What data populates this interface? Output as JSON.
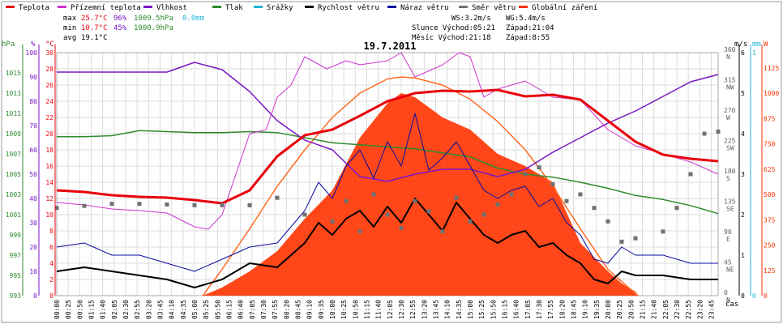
{
  "chart_data": {
    "type": "line",
    "title": "19.7.2011",
    "legend": [
      {
        "name": "Teplota",
        "color": "#e8000b"
      },
      {
        "name": "Přízemní teplota",
        "color": "#cc33cc"
      },
      {
        "name": "Vlhkost",
        "color": "#7b16c4"
      },
      {
        "name": "Tlak",
        "color": "#2e8b2e"
      },
      {
        "name": "Srážky",
        "color": "#1fb6d6"
      },
      {
        "name": "Rychlost větru",
        "color": "#000000"
      },
      {
        "name": "Náraz větru",
        "color": "#0a0aa0"
      },
      {
        "name": "Směr větru",
        "color": "#707070"
      },
      {
        "name": "Globální záření",
        "color": "#ff3300"
      }
    ],
    "stats": {
      "max": {
        "label": "max",
        "temp": "25.7°C",
        "hum": "96%",
        "press": "1009.5hPa",
        "rain": "0.0mm"
      },
      "min": {
        "label": "min",
        "temp": "10.7°C",
        "hum": "45%",
        "press": "1000.9hPa"
      },
      "avg": {
        "label": "avg",
        "temp": "19.1°C"
      }
    },
    "info": {
      "ws": "WS:3.2m/s",
      "wg": "WG:5.4m/s",
      "sun": "Slunce Východ:05:21",
      "sun_set": "Západ:21:04",
      "moon": "Měsíc Východ:21:18",
      "moon_set": "Západ:8:55"
    },
    "axes": {
      "hpa_unit": "hPa",
      "hum_unit": "%",
      "temp_unit": "°C",
      "wind_unit": "m/s",
      "rain_unit": "mm",
      "rad_unit": "W",
      "time_unit": "čas",
      "hpa_ticks": [
        "993",
        "995",
        "997",
        "999",
        "1001",
        "1003",
        "1005",
        "1007",
        "1009",
        "1011",
        "1013",
        "1015"
      ],
      "hum_ticks": [
        "0",
        "10",
        "20",
        "30",
        "40",
        "50",
        "60",
        "70",
        "80",
        "90",
        "100"
      ],
      "temp_ticks": [
        "0",
        "2",
        "4",
        "6",
        "8",
        "10",
        "12",
        "14",
        "16",
        "18",
        "20",
        "22",
        "24",
        "26",
        "28",
        "30"
      ],
      "dir_ticks": [
        {
          "deg": "0",
          "lab": "N"
        },
        {
          "deg": "45",
          "lab": "NE"
        },
        {
          "deg": "90",
          "lab": "E"
        },
        {
          "deg": "135",
          "lab": "SE"
        },
        {
          "deg": "180",
          "lab": "S"
        },
        {
          "deg": "225",
          "lab": "SW"
        },
        {
          "deg": "270",
          "lab": "W"
        },
        {
          "deg": "315",
          "lab": "NW"
        },
        {
          "deg": "360",
          "lab": "N"
        }
      ],
      "wind_ticks": [
        "0",
        "1",
        "2",
        "3",
        "4",
        "5",
        "6"
      ],
      "rain_ticks": [
        "0",
        "1"
      ],
      "rad_ticks": [
        "0",
        "125",
        "250",
        "375",
        "500",
        "625",
        "750",
        "875",
        "1000",
        "1125"
      ],
      "time_ticks": [
        "00:00",
        "00:25",
        "00:50",
        "01:15",
        "01:40",
        "02:05",
        "02:30",
        "02:55",
        "03:20",
        "03:45",
        "04:10",
        "04:35",
        "05:00",
        "05:25",
        "05:50",
        "06:15",
        "06:40",
        "07:05",
        "07:30",
        "07:55",
        "08:20",
        "08:45",
        "09:10",
        "09:35",
        "10:00",
        "10:25",
        "10:50",
        "11:15",
        "11:40",
        "12:05",
        "12:30",
        "12:55",
        "13:20",
        "13:45",
        "14:10",
        "14:35",
        "15:00",
        "15:25",
        "15:50",
        "16:15",
        "16:40",
        "17:05",
        "17:30",
        "17:55",
        "18:20",
        "18:45",
        "19:10",
        "19:35",
        "20:00",
        "20:25",
        "20:50",
        "21:15",
        "21:40",
        "22:05",
        "22:30",
        "22:55",
        "23:20",
        "23:45"
      ],
      "temp_range": [
        0,
        30
      ],
      "hum_range": [
        0,
        100
      ],
      "press_range": [
        993,
        1017
      ],
      "wind_range": [
        0,
        6
      ],
      "rad_range": [
        0,
        1200
      ],
      "dir_range": [
        0,
        360
      ]
    },
    "series": [
      {
        "name": "Teplota",
        "x": [
          0,
          1,
          2,
          3,
          4,
          5,
          6,
          7,
          8,
          9,
          10,
          11,
          12,
          13,
          14,
          15,
          16,
          17,
          18,
          19,
          20,
          21,
          22,
          23,
          24
        ],
        "y": [
          13,
          12.8,
          12.4,
          12.2,
          12.1,
          11.8,
          11.4,
          13,
          17.2,
          19.8,
          20.5,
          22.2,
          24,
          25,
          25.3,
          25.2,
          25.4,
          24.6,
          24.8,
          24.2,
          21.6,
          19,
          17.4,
          16.9,
          16.6
        ]
      },
      {
        "name": "Přízemní teplota",
        "x": [
          0,
          1,
          2,
          3,
          4,
          5,
          5.5,
          6,
          7,
          7.6,
          8,
          8.5,
          9,
          9.8,
          10.5,
          11,
          12,
          12.5,
          13,
          14,
          14.6,
          15,
          15.5,
          16,
          17,
          18,
          19,
          20,
          20.5,
          21,
          22,
          23,
          24
        ],
        "y": [
          11.5,
          11.2,
          10.7,
          10.5,
          10.2,
          8.5,
          8.2,
          10,
          20,
          20.5,
          24.5,
          26,
          29.5,
          28,
          29,
          28.5,
          29,
          30,
          27,
          28.5,
          30,
          29.5,
          24.5,
          25.5,
          26.5,
          24.5,
          24.2,
          20.5,
          19.5,
          18.5,
          17.5,
          16.5,
          15
        ]
      },
      {
        "name": "Vlhkost",
        "x": [
          0,
          1,
          2,
          3,
          4,
          5,
          6,
          7,
          8,
          9,
          10,
          11,
          12,
          13,
          14,
          15,
          16,
          17,
          18,
          19,
          20,
          21,
          22,
          23,
          24
        ],
        "y": [
          92,
          92,
          92,
          92,
          92,
          96,
          93,
          84,
          72,
          64,
          60,
          49,
          47,
          50,
          52,
          52,
          49,
          52,
          59,
          65,
          71,
          76,
          82,
          88,
          91
        ]
      },
      {
        "name": "Tlak",
        "x": [
          0,
          1,
          2,
          3,
          4,
          5,
          6,
          7,
          8,
          9,
          10,
          11,
          12,
          13,
          14,
          15,
          16,
          17,
          18,
          19,
          20,
          21,
          22,
          23,
          24
        ],
        "y": [
          1008.7,
          1008.7,
          1008.8,
          1009.3,
          1009.2,
          1009.1,
          1009.1,
          1009.2,
          1009.1,
          1008.6,
          1008.1,
          1007.9,
          1007.7,
          1007.5,
          1007.1,
          1006.7,
          1005.6,
          1005,
          1004.7,
          1004.2,
          1003.6,
          1002.9,
          1002.5,
          1001.9,
          1001.1
        ]
      },
      {
        "name": "Rychlost větru",
        "x": [
          0,
          1,
          2,
          3,
          4,
          5,
          6,
          7,
          8,
          9,
          9.5,
          10,
          10.5,
          11,
          11.5,
          12,
          12.5,
          13,
          13.5,
          14,
          14.5,
          15,
          15.5,
          16,
          16.5,
          17,
          17.5,
          18,
          18.5,
          19,
          19.5,
          20,
          20.5,
          21,
          22,
          23,
          24
        ],
        "y": [
          0.6,
          0.7,
          0.6,
          0.5,
          0.4,
          0.2,
          0.4,
          0.8,
          0.7,
          1.3,
          1.8,
          1.5,
          1.9,
          2.1,
          1.7,
          2.2,
          1.8,
          2.4,
          2.0,
          1.6,
          2.3,
          1.9,
          1.5,
          1.3,
          1.5,
          1.6,
          1.2,
          1.3,
          1.0,
          0.8,
          0.4,
          0.3,
          0.6,
          0.5,
          0.5,
          0.4,
          0.4
        ]
      },
      {
        "name": "Náraz větru",
        "x": [
          0,
          1,
          2,
          3,
          4,
          5,
          6,
          7,
          8,
          9,
          9.5,
          10,
          10.5,
          11,
          11.5,
          12,
          12.5,
          13,
          13.5,
          14,
          14.5,
          15,
          15.5,
          16,
          16.5,
          17,
          17.5,
          18,
          18.5,
          19,
          19.5,
          20,
          20.5,
          21,
          22,
          23,
          24
        ],
        "y": [
          1.2,
          1.3,
          1.0,
          1.0,
          0.8,
          0.6,
          0.9,
          1.2,
          1.3,
          2.1,
          2.8,
          2.4,
          3.2,
          3.6,
          2.9,
          3.8,
          3.2,
          4.5,
          3.1,
          3.4,
          3.8,
          3.2,
          2.6,
          2.4,
          2.6,
          2.7,
          2.2,
          2.4,
          1.8,
          1.5,
          0.9,
          0.8,
          1.2,
          1.0,
          1.0,
          0.8,
          0.8
        ]
      },
      {
        "name": "Směr větru",
        "x": [
          0,
          1,
          2,
          3,
          4,
          5,
          6,
          7,
          8,
          9,
          10,
          10.5,
          11,
          11.5,
          12,
          12.5,
          13,
          13.5,
          14,
          14.5,
          15,
          15.5,
          16,
          16.5,
          17,
          17.5,
          18,
          18.5,
          19,
          19.5,
          20,
          20.5,
          21,
          22,
          22.5,
          23,
          23.5,
          24
        ],
        "y": [
          130,
          133,
          136,
          136,
          135,
          134,
          134,
          134,
          145,
          120,
          110,
          140,
          95,
          150,
          120,
          100,
          140,
          125,
          95,
          145,
          110,
          120,
          135,
          150,
          180,
          190,
          165,
          140,
          150,
          130,
          110,
          80,
          85,
          95,
          130,
          180,
          240,
          243
        ]
      },
      {
        "name": "Globální záření",
        "x": [
          5.3,
          6,
          7,
          8,
          9,
          10,
          11,
          12,
          12.5,
          13,
          14,
          15,
          16,
          17,
          18,
          19,
          20,
          20.5,
          21,
          21.1
        ],
        "y": [
          0,
          40,
          120,
          220,
          380,
          520,
          780,
          950,
          1000,
          980,
          880,
          820,
          700,
          640,
          560,
          260,
          120,
          60,
          20,
          0
        ]
      },
      {
        "name": "Globální záření max",
        "x": [
          5.3,
          6,
          7,
          8,
          9,
          10,
          11,
          12,
          12.5,
          13,
          14,
          15,
          16,
          17,
          18,
          19,
          20,
          21,
          21.1
        ],
        "y": [
          0,
          130,
          330,
          540,
          720,
          880,
          1000,
          1070,
          1080,
          1075,
          1040,
          970,
          860,
          720,
          540,
          330,
          130,
          10,
          0
        ]
      }
    ]
  }
}
